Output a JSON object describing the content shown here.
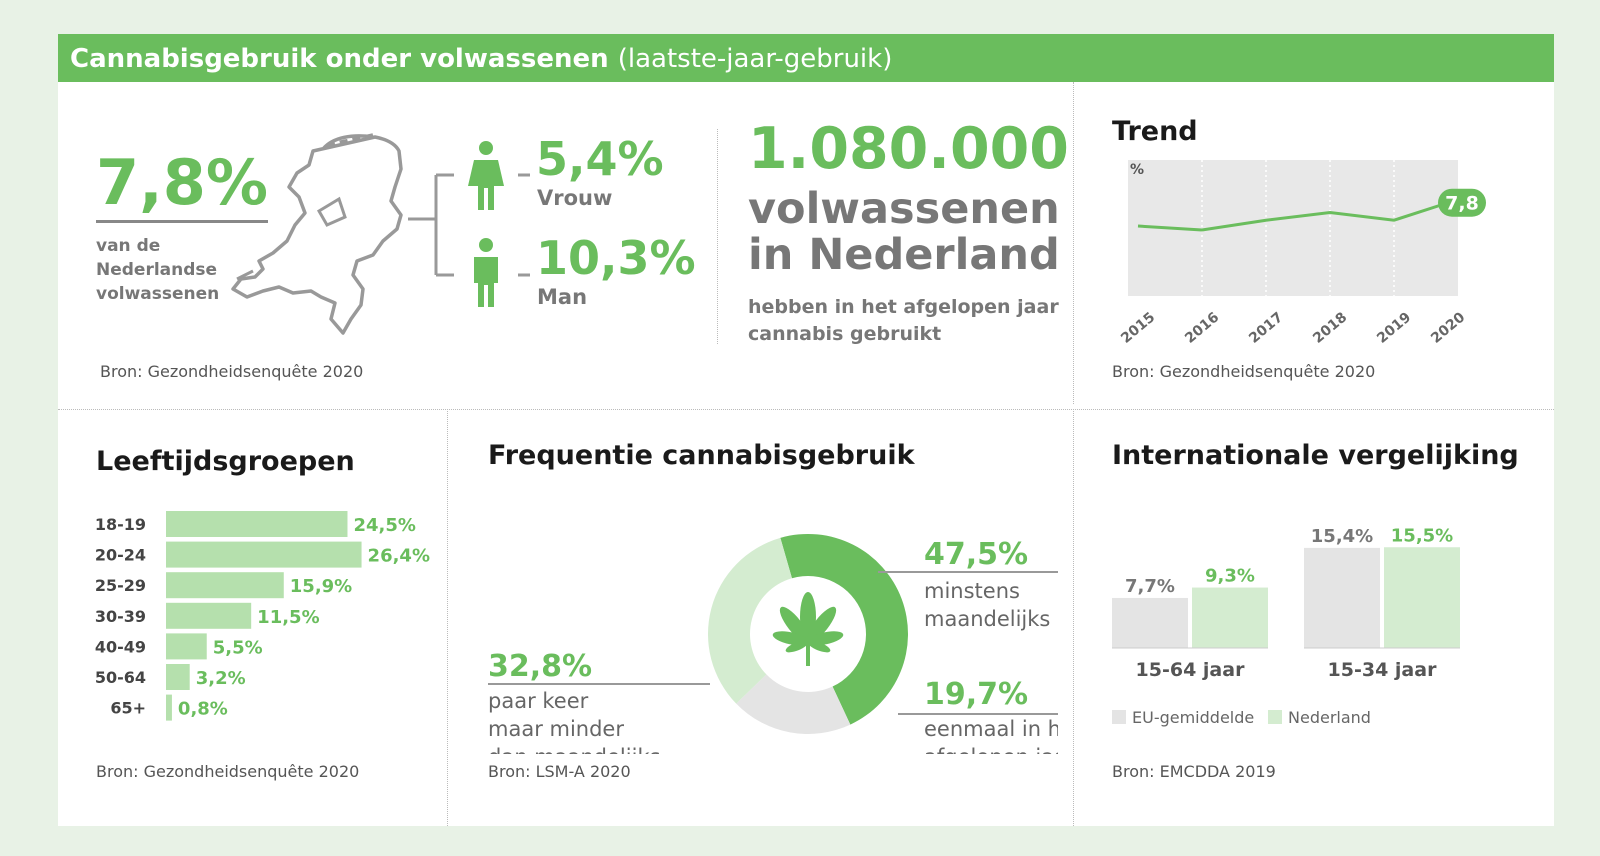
{
  "header": {
    "title_bold": "Cannabisgebruik onder volwassenen",
    "title_normal": "(laatste-jaar-gebruik)"
  },
  "overview": {
    "total_pct": "7,8%",
    "total_label": [
      "van de",
      "Nederlandse",
      "volwassenen"
    ],
    "women_pct": "5,4%",
    "women_label": "Vrouw",
    "men_pct": "10,3%",
    "men_label": "Man",
    "source": "Bron: Gezondheidsenquête 2020"
  },
  "headline": {
    "number": "1.080.000",
    "line1": "volwassenen",
    "line2": "in Nederland",
    "sub1": "hebben in het afgelopen jaar",
    "sub2": "cannabis gebruikt"
  },
  "trend": {
    "title": "Trend",
    "source": "Bron: Gezondheidsenquête 2020"
  },
  "age": {
    "title": "Leeftijdsgroepen",
    "source": "Bron: Gezondheidsenquête 2020"
  },
  "frequency": {
    "title": "Frequentie cannabisgebruik",
    "source": "Bron: LSM-A 2020"
  },
  "international": {
    "title": "Internationale vergelijking",
    "source": "Bron: EMCDDA 2019"
  },
  "chart_data": [
    {
      "type": "line",
      "title": "Trend",
      "ylabel": "%",
      "x": [
        "2015",
        "2016",
        "2017",
        "2018",
        "2019",
        "2020"
      ],
      "series": [
        {
          "values": [
            6.6,
            6.4,
            6.9,
            7.3,
            6.9,
            7.8
          ]
        }
      ],
      "ylim": [
        3,
        10
      ],
      "highlight_label": "7,8",
      "grid": "vertical dotted"
    },
    {
      "type": "bar",
      "orientation": "horizontal",
      "categories": [
        "18-19",
        "20-24",
        "25-29",
        "30-39",
        "40-49",
        "50-64",
        "65+"
      ],
      "values": [
        24.5,
        26.4,
        15.9,
        11.5,
        5.5,
        3.2,
        0.8
      ],
      "labels": [
        "24,5%",
        "26,4%",
        "15,9%",
        "11,5%",
        "5,5%",
        "3,2%",
        "0,8%"
      ]
    },
    {
      "type": "pie",
      "style": "donut",
      "slices": [
        {
          "pct_label": "47,5%",
          "value": 47.5,
          "label": [
            "minstens",
            "maandelijks"
          ],
          "color": "#6abd5d"
        },
        {
          "pct_label": "19,7%",
          "value": 19.7,
          "label": [
            "eenmaal in het",
            "afgelopen jaar"
          ],
          "color": "#e4e4e4"
        },
        {
          "pct_label": "32,8%",
          "value": 32.8,
          "label": [
            "paar keer",
            "maar minder",
            "dan maandelijks"
          ],
          "color": "#d4ecd0"
        }
      ]
    },
    {
      "type": "bar",
      "categories": [
        "15-64 jaar",
        "15-34 jaar"
      ],
      "series": [
        {
          "name": "EU-gemiddelde",
          "values": [
            7.7,
            15.4
          ],
          "labels": [
            "7,7%",
            "15,4%"
          ],
          "color": "#e4e4e4"
        },
        {
          "name": "Nederland",
          "values": [
            9.3,
            15.5
          ],
          "labels": [
            "9,3%",
            "15,5%"
          ],
          "color": "#d4ecd0"
        }
      ]
    }
  ],
  "colors": {
    "accent": "#6abd5d",
    "light_green": "#d4ecd0",
    "light_grey": "#e4e4e4",
    "text_grey": "#777777"
  }
}
